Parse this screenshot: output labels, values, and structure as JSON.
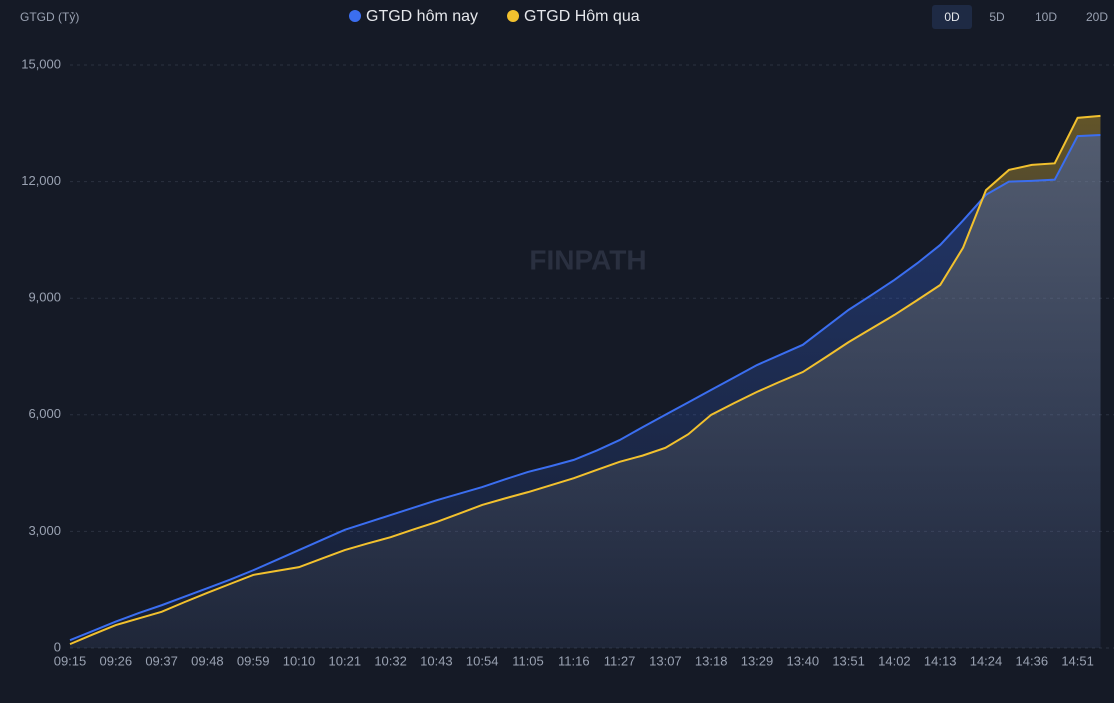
{
  "chart_data": {
    "type": "line",
    "y_axis_label": "GTGD (Tỷ)",
    "categories": [
      "09:15",
      null,
      "09:26",
      null,
      "09:37",
      null,
      "09:48",
      null,
      "09:59",
      null,
      "10:10",
      null,
      "10:21",
      null,
      "10:32",
      null,
      "10:43",
      null,
      "10:54",
      null,
      "11:05",
      null,
      "11:16",
      null,
      "11:27",
      null,
      "13:07",
      null,
      "13:18",
      null,
      "13:29",
      null,
      "13:40",
      null,
      "13:51",
      null,
      "14:02",
      null,
      "14:13",
      null,
      "14:24",
      null,
      "14:36",
      null,
      "14:51",
      null
    ],
    "series": [
      {
        "name": "GTGD hôm nay",
        "color": "#3b6ef0",
        "values": [
          200,
          440,
          680,
          900,
          1100,
          1320,
          1540,
          1760,
          2000,
          2260,
          2520,
          2780,
          3040,
          3230,
          3420,
          3610,
          3800,
          3970,
          4140,
          4340,
          4530,
          4680,
          4840,
          5080,
          5350,
          5680,
          6000,
          6320,
          6640,
          6960,
          7280,
          7540,
          7800,
          8250,
          8700,
          9080,
          9470,
          9900,
          10370,
          11000,
          11660,
          12000,
          12020,
          12050,
          13170,
          13200
        ]
      },
      {
        "name": "GTGD Hôm qua",
        "color": "#f2c12e",
        "values": [
          100,
          350,
          590,
          760,
          930,
          1180,
          1420,
          1650,
          1880,
          1980,
          2080,
          2300,
          2520,
          2690,
          2850,
          3050,
          3240,
          3460,
          3680,
          3850,
          4010,
          4190,
          4370,
          4580,
          4790,
          4950,
          5150,
          5500,
          6000,
          6300,
          6590,
          6850,
          7100,
          7480,
          7870,
          8220,
          8570,
          8950,
          9340,
          10300,
          11780,
          12300,
          12430,
          12470,
          13640,
          13690
        ]
      }
    ],
    "ylim": [
      0,
      15000
    ],
    "yticks": [
      0,
      {
        "value": 3000,
        "label": "3,000"
      },
      {
        "value": 6000,
        "label": "6,000"
      },
      {
        "value": 9000,
        "label": "9,000"
      },
      {
        "value": 12000,
        "label": "12,000"
      },
      {
        "value": 15000,
        "label": "15,000"
      }
    ],
    "grid": true
  },
  "watermark": "FINPATH",
  "range_buttons": [
    "0D",
    "5D",
    "10D",
    "20D"
  ],
  "selected_range": 0
}
